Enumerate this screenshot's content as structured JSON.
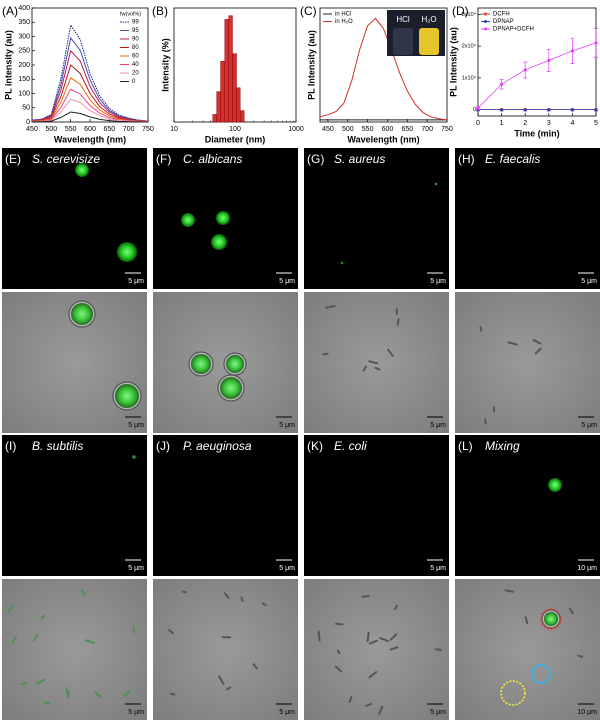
{
  "chart_data": [
    {
      "type": "line",
      "panel_label": "(A)",
      "xlabel": "Wavelength (nm)",
      "ylabel": "PL intensity (au)",
      "legend_title": "fw(vol%)",
      "legend_position": "upper right",
      "x": [
        450,
        475,
        500,
        525,
        550,
        575,
        600,
        625,
        650,
        675,
        700,
        725,
        750
      ],
      "series": [
        {
          "name": "99",
          "color": "#1a237e",
          "dash": true,
          "values": [
            7,
            10,
            27,
            153,
            340,
            289,
            170,
            92,
            48,
            24,
            14,
            7,
            3
          ]
        },
        {
          "name": "95",
          "color": "#3f51b5",
          "values": [
            6,
            9,
            24,
            133,
            295,
            251,
            148,
            80,
            41,
            21,
            12,
            6,
            3
          ]
        },
        {
          "name": "90",
          "color": "#c2185b",
          "values": [
            5,
            8,
            20,
            113,
            250,
            213,
            125,
            68,
            35,
            18,
            10,
            5,
            3
          ]
        },
        {
          "name": "80",
          "color": "#b71c1c",
          "values": [
            4,
            6,
            16,
            90,
            200,
            170,
            100,
            54,
            28,
            14,
            8,
            4,
            2
          ]
        },
        {
          "name": "60",
          "color": "#ef6c00",
          "values": [
            3,
            5,
            12,
            70,
            155,
            132,
            78,
            42,
            22,
            11,
            6,
            3,
            2
          ]
        },
        {
          "name": "40",
          "color": "#ec407a",
          "values": [
            2,
            3,
            9,
            52,
            115,
            98,
            58,
            31,
            16,
            8,
            5,
            2,
            1
          ]
        },
        {
          "name": "20",
          "color": "#f48fb1",
          "values": [
            2,
            2,
            6,
            36,
            80,
            68,
            40,
            22,
            11,
            6,
            3,
            2,
            1
          ]
        },
        {
          "name": "0",
          "color": "#222222",
          "values": [
            1,
            1,
            3,
            16,
            35,
            30,
            18,
            9,
            5,
            2,
            1,
            1,
            0
          ]
        }
      ],
      "xlim": [
        450,
        750
      ],
      "ylim": [
        0,
        400
      ],
      "xticks": [
        450,
        500,
        550,
        600,
        650,
        700,
        750
      ],
      "yticks": [
        0,
        50,
        100,
        150,
        200,
        250,
        300,
        350,
        400
      ]
    },
    {
      "type": "histogram",
      "panel_label": "(B)",
      "xlabel": "Diameter (nm)",
      "ylabel": "Intensity (%)",
      "log_x": true,
      "color": "#d32f2f",
      "bins": [
        43,
        50,
        58,
        68,
        79,
        91,
        106,
        122,
        142
      ],
      "values": [
        2,
        8,
        16,
        27,
        28,
        18,
        9,
        3
      ],
      "xlim": [
        10,
        1000
      ],
      "ylim": [
        0,
        30
      ],
      "xticks": [
        10,
        100,
        1000
      ]
    },
    {
      "type": "line",
      "panel_label": "(C)",
      "xlabel": "Wavelength (nm)",
      "ylabel": "PL Intensity (au)",
      "legend_position": "upper left",
      "inset_labels": [
        "HCl",
        "H₂O"
      ],
      "x": [
        430,
        450,
        470,
        490,
        510,
        530,
        550,
        570,
        590,
        610,
        630,
        650,
        670,
        690,
        710,
        730,
        750
      ],
      "series": [
        {
          "name": "in HCl",
          "color": "#222222",
          "values": [
            0.02,
            0.02,
            0.02,
            0.02,
            0.02,
            0.02,
            0.02,
            0.02,
            0.02,
            0.02,
            0.02,
            0.02,
            0.02,
            0.02,
            0.02,
            0.02,
            0.02
          ]
        },
        {
          "name": "in H₂O",
          "color": "#d32f2f",
          "values": [
            0.05,
            0.07,
            0.1,
            0.18,
            0.4,
            0.7,
            0.93,
            1.0,
            0.9,
            0.7,
            0.48,
            0.3,
            0.17,
            0.09,
            0.05,
            0.03,
            0.02
          ]
        }
      ],
      "xlim": [
        430,
        750
      ],
      "ylim": [
        0,
        1.1
      ],
      "xticks": [
        450,
        500,
        550,
        600,
        650,
        700,
        750
      ]
    },
    {
      "type": "line",
      "panel_label": "(D)",
      "xlabel": "Time (min)",
      "ylabel": "PL Intensity (au)",
      "legend_position": "upper left",
      "x": [
        0,
        1,
        2,
        3,
        4,
        5
      ],
      "series": [
        {
          "name": "DCFH",
          "color": "#e53935",
          "marker": "circle",
          "values": [
            0,
            0,
            0,
            0,
            0,
            0
          ]
        },
        {
          "name": "DPNAP",
          "color": "#1e3fbf",
          "marker": "triangle",
          "values": [
            0,
            0,
            0,
            0,
            0,
            0
          ]
        },
        {
          "name": "DPNAP+DCFH",
          "color": "#e040fb",
          "marker": "diamond",
          "values": [
            500,
            8000,
            12500,
            15500,
            18500,
            21000
          ],
          "errors": [
            500,
            1500,
            2500,
            3500,
            4000,
            4500
          ]
        }
      ],
      "xlim": [
        0,
        5
      ],
      "ylim": [
        -2000,
        32000
      ],
      "xticks": [
        0,
        1,
        2,
        3,
        4,
        5
      ],
      "yticks": [
        0,
        {
          "value": 10000,
          "label": "1x10⁴"
        },
        {
          "value": 20000,
          "label": "2x10⁴"
        },
        {
          "value": 30000,
          "label": "3x10⁴"
        }
      ]
    }
  ],
  "micrographs": [
    {
      "label": "(E)",
      "organism": "S. cerevisize",
      "scale_bars": [
        "5 μm",
        "5 μm"
      ]
    },
    {
      "label": "(F)",
      "organism": "C. albicans",
      "scale_bars": [
        "5 μm",
        "5 μm"
      ]
    },
    {
      "label": "(G)",
      "organism": "S. aureus",
      "scale_bars": [
        "5 μm",
        "5 μm"
      ]
    },
    {
      "label": "(H)",
      "organism": "E. faecalis",
      "scale_bars": [
        "5 μm",
        "5 μm"
      ]
    },
    {
      "label": "(I)",
      "organism": "B. subtilis",
      "scale_bars": [
        "5 μm",
        "5 μm"
      ]
    },
    {
      "label": "(J)",
      "organism": "P. aeuginosa",
      "scale_bars": [
        "5 μm",
        "5 μm"
      ]
    },
    {
      "label": "(K)",
      "organism": "E. coli",
      "scale_bars": [
        "5 μm",
        "5 μm"
      ]
    },
    {
      "label": "(L)",
      "organism": "Mixing",
      "scale_bars": [
        "10 μm",
        "10 μm"
      ]
    }
  ]
}
